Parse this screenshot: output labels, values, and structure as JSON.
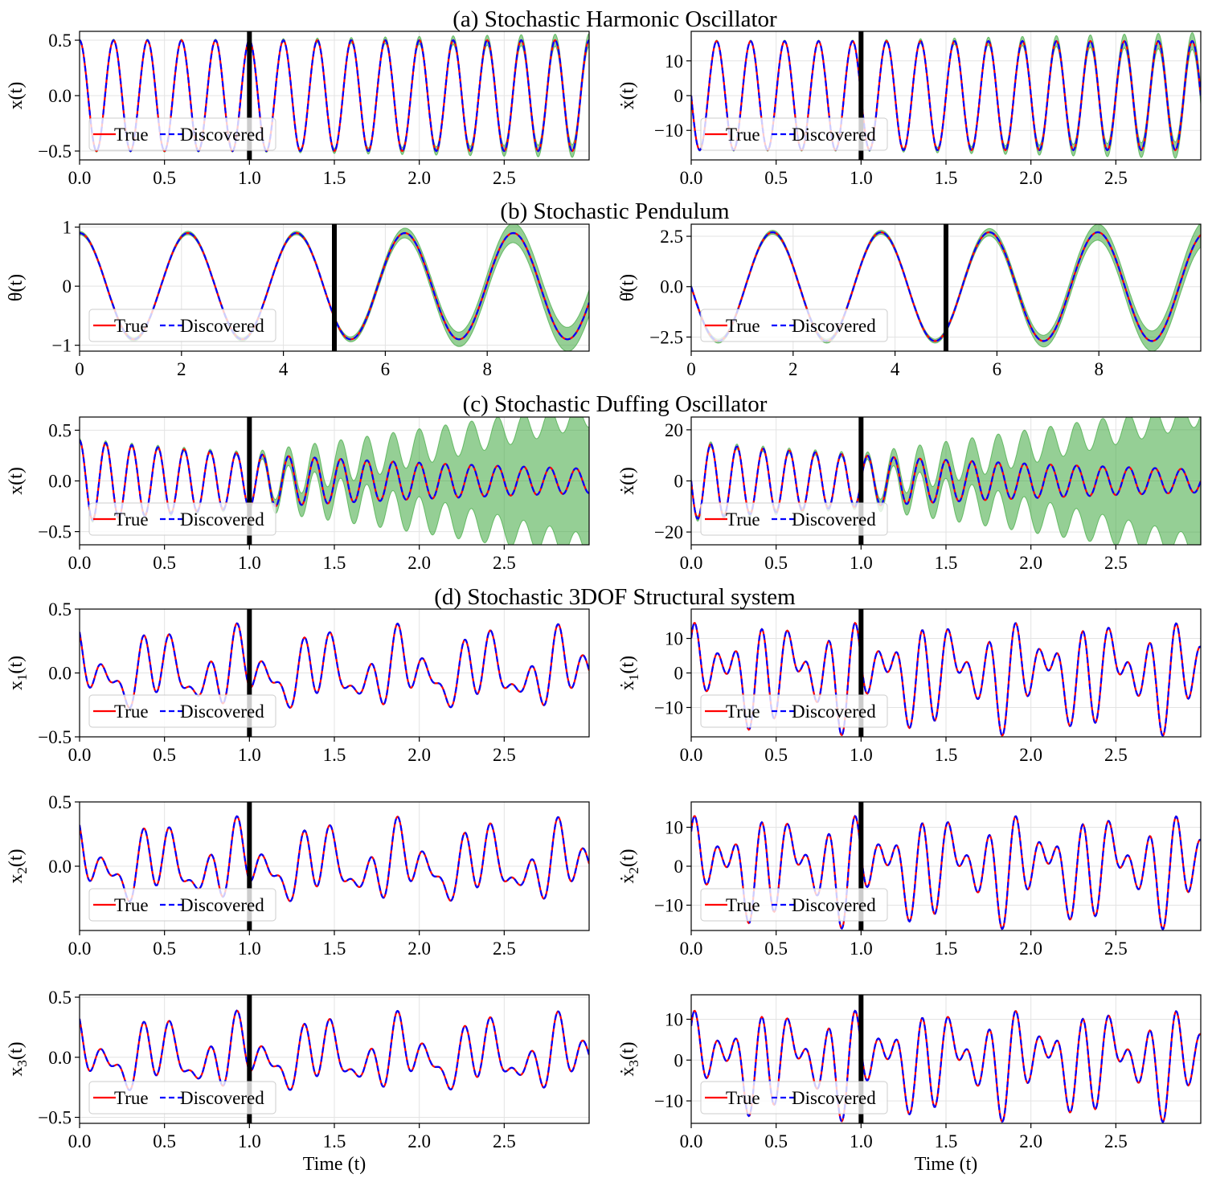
{
  "figure": {
    "legend_true": "True",
    "legend_discovered": "Discovered",
    "colors": {
      "true": "#ff0000",
      "discovered": "#0000ff",
      "band": "#2ca02c",
      "split": "#000000"
    }
  },
  "chart_data": [
    {
      "id": "ho-x",
      "type": "line",
      "title": "(a) Stochastic Harmonic Oscillator",
      "ylabel": "x(t)",
      "xlabel": "",
      "xlim": [
        0,
        3
      ],
      "ylim": [
        -0.58,
        0.58
      ],
      "xticks": [
        "0.0",
        "0.5",
        "1.0",
        "1.5",
        "2.0",
        "2.5"
      ],
      "yticks": [
        "0.5",
        "0.0",
        "-0.5"
      ],
      "ytick_values": [
        0.5,
        0.0,
        -0.5
      ],
      "split": 1.0,
      "signal": "sine",
      "amplitude": 0.5,
      "frequency": 5.0,
      "band": [
        0.01,
        0.06
      ],
      "series": [
        {
          "name": "True"
        },
        {
          "name": "Discovered"
        }
      ]
    },
    {
      "id": "ho-v",
      "type": "line",
      "title": "",
      "ylabel": "ẋ(t)",
      "xlabel": "",
      "xlim": [
        0,
        3
      ],
      "ylim": [
        -18.5,
        18.5
      ],
      "xticks": [
        "0.0",
        "0.5",
        "1.0",
        "1.5",
        "2.0",
        "2.5"
      ],
      "yticks": [
        "10",
        "0",
        "-10"
      ],
      "ytick_values": [
        10,
        0,
        -10
      ],
      "split": 1.0,
      "signal": "sine-derivative",
      "amplitude": 15.7,
      "frequency": 5.0,
      "band": [
        0.3,
        2.5
      ],
      "series": [
        {
          "name": "True"
        },
        {
          "name": "Discovered"
        }
      ]
    },
    {
      "id": "pend-x",
      "type": "line",
      "title": "(b) Stochastic Pendulum",
      "ylabel": "θ(t)",
      "xlabel": "",
      "xlim": [
        0,
        10
      ],
      "ylim": [
        -1.1,
        1.05
      ],
      "xticks": [
        "0",
        "2",
        "4",
        "6",
        "8"
      ],
      "yticks": [
        "1",
        "0",
        "-1"
      ],
      "ytick_values": [
        1,
        0,
        -1
      ],
      "split": 5.0,
      "signal": "sine",
      "amplitude": 0.9,
      "frequency": 0.47,
      "band": [
        0.03,
        0.22
      ],
      "series": [
        {
          "name": "True"
        },
        {
          "name": "Discovered"
        }
      ]
    },
    {
      "id": "pend-v",
      "type": "line",
      "title": "",
      "ylabel": "θ̇(t)",
      "xlabel": "",
      "xlim": [
        0,
        10
      ],
      "ylim": [
        -3.2,
        3.1
      ],
      "xticks": [
        "0",
        "2",
        "4",
        "6",
        "8"
      ],
      "yticks": [
        "2.5",
        "0.0",
        "-2.5"
      ],
      "ytick_values": [
        2.5,
        0.0,
        -2.5
      ],
      "split": 5.0,
      "signal": "sine-derivative",
      "amplitude": 2.7,
      "frequency": 0.47,
      "band": [
        0.1,
        0.6
      ],
      "series": [
        {
          "name": "True"
        },
        {
          "name": "Discovered"
        }
      ]
    },
    {
      "id": "duff-x",
      "type": "line",
      "title": "(c) Stochastic Duffing Oscillator",
      "ylabel": "x(t)",
      "xlabel": "",
      "xlim": [
        0,
        3
      ],
      "ylim": [
        -0.63,
        0.63
      ],
      "xticks": [
        "0.0",
        "0.5",
        "1.0",
        "1.5",
        "2.0",
        "2.5"
      ],
      "yticks": [
        "0.5",
        "0.0",
        "-0.5"
      ],
      "ytick_values": [
        0.5,
        0.0,
        -0.5
      ],
      "split": 1.0,
      "signal": "decaying-sine",
      "amplitude": 0.4,
      "frequency": 6.5,
      "decay": 0.4,
      "band": [
        0.02,
        0.65
      ],
      "series": [
        {
          "name": "True"
        },
        {
          "name": "Discovered"
        }
      ]
    },
    {
      "id": "duff-v",
      "type": "line",
      "title": "",
      "ylabel": "ẋ(t)",
      "xlabel": "",
      "xlim": [
        0,
        3
      ],
      "ylim": [
        -25,
        25
      ],
      "xticks": [
        "0.0",
        "0.5",
        "1.0",
        "1.5",
        "2.0",
        "2.5"
      ],
      "yticks": [
        "20",
        "0",
        "-20"
      ],
      "ytick_values": [
        20,
        0,
        -20
      ],
      "split": 1.0,
      "signal": "decaying-sine-derivative",
      "amplitude": 15,
      "frequency": 6.5,
      "decay": 0.4,
      "band": [
        1,
        26
      ],
      "series": [
        {
          "name": "True"
        },
        {
          "name": "Discovered"
        }
      ]
    },
    {
      "id": "dof-x1",
      "type": "line",
      "title": "(d) Stochastic 3DOF Structural system",
      "ylabel": "x1(t)",
      "xlabel": "",
      "xlim": [
        0,
        3
      ],
      "ylim": [
        -0.5,
        0.5
      ],
      "xticks": [
        "0.0",
        "0.5",
        "1.0",
        "1.5",
        "2.0",
        "2.5"
      ],
      "yticks": [
        "0.5",
        "0.0",
        "-0.5"
      ],
      "ytick_values": [
        0.5,
        0.0,
        -0.5
      ],
      "split": 1.0,
      "signal": "multi",
      "amplitude": 0.25,
      "band": [
        0.003,
        0.005
      ],
      "series": [
        {
          "name": "True"
        },
        {
          "name": "Discovered"
        }
      ]
    },
    {
      "id": "dof-v1",
      "type": "line",
      "title": "",
      "ylabel": "ẋ1(t)",
      "xlabel": "",
      "xlim": [
        0,
        3
      ],
      "ylim": [
        -18.5,
        18.5
      ],
      "xticks": [
        "0.0",
        "0.5",
        "1.0",
        "1.5",
        "2.0",
        "2.5"
      ],
      "yticks": [
        "10",
        "0",
        "-10"
      ],
      "ytick_values": [
        10,
        0,
        -10
      ],
      "split": 1.0,
      "signal": "multi-derivative",
      "amplitude": 9,
      "band": [
        0.1,
        0.2
      ],
      "series": [
        {
          "name": "True"
        },
        {
          "name": "Discovered"
        }
      ]
    },
    {
      "id": "dof-x2",
      "type": "line",
      "title": "",
      "ylabel": "x2(t)",
      "xlabel": "",
      "xlim": [
        0,
        3
      ],
      "ylim": [
        -0.5,
        0.5
      ],
      "xticks": [
        "0.0",
        "0.5",
        "1.0",
        "1.5",
        "2.0",
        "2.5"
      ],
      "yticks": [
        "0.5",
        "0.0"
      ],
      "ytick_values": [
        0.5,
        0.0
      ],
      "split": 1.0,
      "signal": "multi",
      "amplitude": 0.25,
      "band": [
        0.003,
        0.005
      ],
      "series": [
        {
          "name": "True"
        },
        {
          "name": "Discovered"
        }
      ]
    },
    {
      "id": "dof-v2",
      "type": "line",
      "title": "",
      "ylabel": "ẋ2(t)",
      "xlabel": "",
      "xlim": [
        0,
        3
      ],
      "ylim": [
        -16.5,
        16.5
      ],
      "xticks": [
        "0.0",
        "0.5",
        "1.0",
        "1.5",
        "2.0",
        "2.5"
      ],
      "yticks": [
        "10",
        "0",
        "-10"
      ],
      "ytick_values": [
        10,
        0,
        -10
      ],
      "split": 1.0,
      "signal": "multi-derivative",
      "amplitude": 8,
      "band": [
        0.1,
        0.2
      ],
      "series": [
        {
          "name": "True"
        },
        {
          "name": "Discovered"
        }
      ]
    },
    {
      "id": "dof-x3",
      "type": "line",
      "title": "",
      "ylabel": "x3(t)",
      "xlabel": "Time (t)",
      "xlim": [
        0,
        3
      ],
      "ylim": [
        -0.55,
        0.52
      ],
      "xticks": [
        "0.0",
        "0.5",
        "1.0",
        "1.5",
        "2.0",
        "2.5"
      ],
      "yticks": [
        "0.5",
        "0.0",
        "-0.5"
      ],
      "ytick_values": [
        0.5,
        0.0,
        -0.5
      ],
      "split": 1.0,
      "signal": "multi",
      "amplitude": 0.25,
      "band": [
        0.003,
        0.005
      ],
      "series": [
        {
          "name": "True"
        },
        {
          "name": "Discovered"
        }
      ]
    },
    {
      "id": "dof-v3",
      "type": "line",
      "title": "",
      "ylabel": "ẋ3(t)",
      "xlabel": "Time (t)",
      "xlim": [
        0,
        3
      ],
      "ylim": [
        -15.5,
        16
      ],
      "xticks": [
        "0.0",
        "0.5",
        "1.0",
        "1.5",
        "2.0",
        "2.5"
      ],
      "yticks": [
        "10",
        "0",
        "-10"
      ],
      "ytick_values": [
        10,
        0,
        -10
      ],
      "split": 1.0,
      "signal": "multi-derivative",
      "amplitude": 7.5,
      "band": [
        0.1,
        0.2
      ],
      "series": [
        {
          "name": "True"
        },
        {
          "name": "Discovered"
        }
      ]
    }
  ]
}
